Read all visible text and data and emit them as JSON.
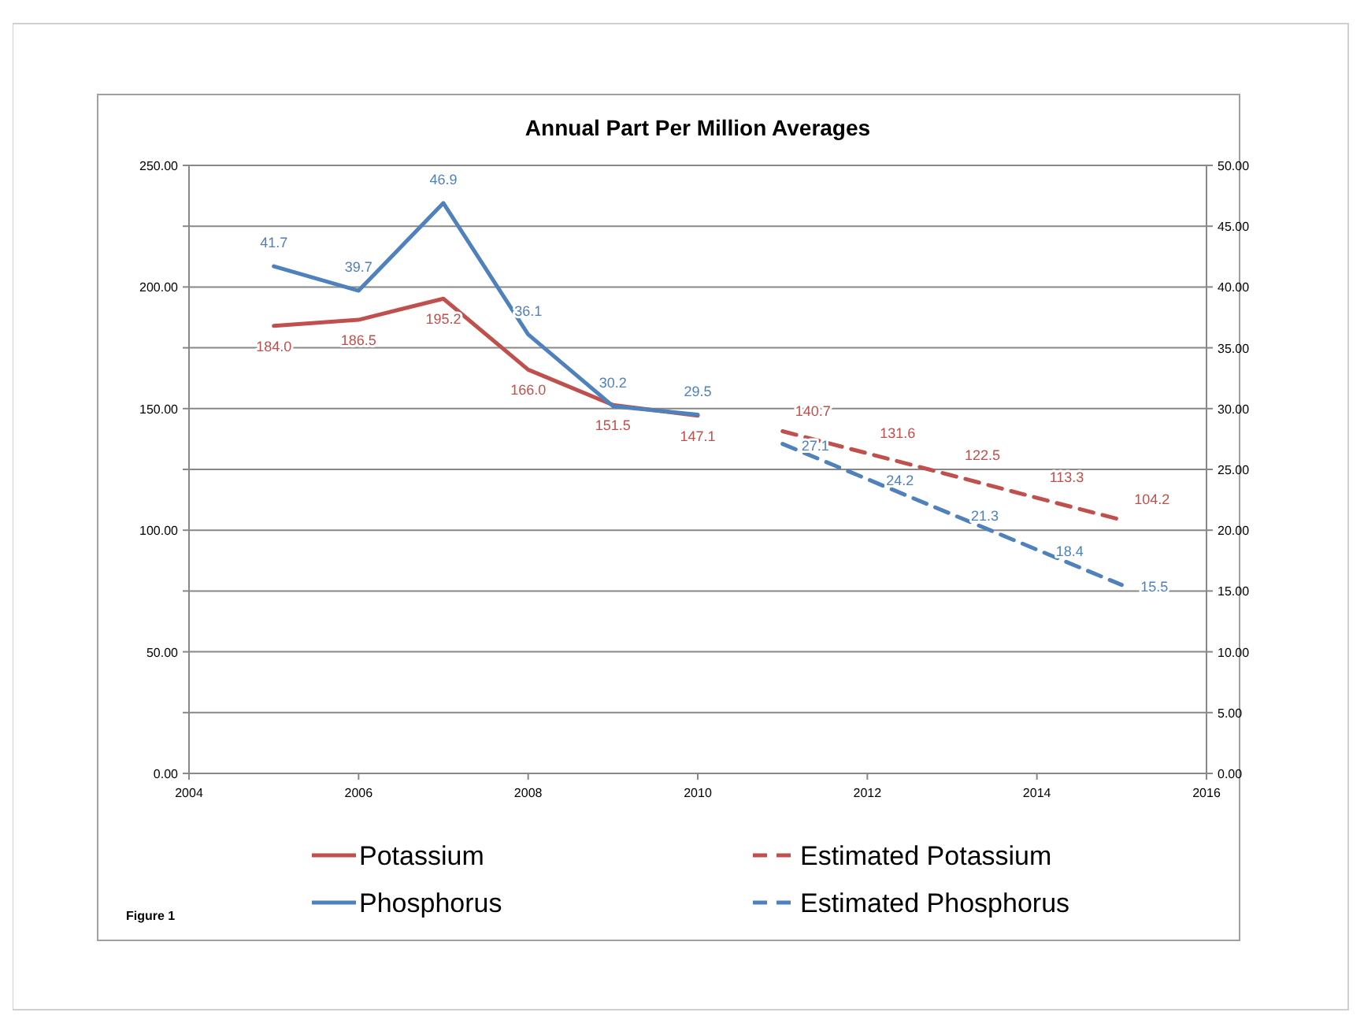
{
  "chart_data": {
    "type": "line",
    "title": "Annual Part Per Million Averages",
    "xlim": [
      2004,
      2016
    ],
    "xticks": [
      2004,
      2006,
      2008,
      2010,
      2012,
      2014,
      2016
    ],
    "ylim": [
      0,
      250
    ],
    "yticks": [
      {
        "value": 0,
        "label": "0.00"
      },
      {
        "value": 25,
        "label": null
      },
      {
        "value": 50,
        "label": "50.00"
      },
      {
        "value": 75,
        "label": null
      },
      {
        "value": 100,
        "label": "100.00"
      },
      {
        "value": 125,
        "label": null
      },
      {
        "value": 150,
        "label": "150.00"
      },
      {
        "value": 175,
        "label": null
      },
      {
        "value": 200,
        "label": "200.00"
      },
      {
        "value": 225,
        "label": null
      },
      {
        "value": 250,
        "label": "250.00"
      }
    ],
    "y2lim": [
      0,
      50
    ],
    "y2ticks": [
      {
        "value": 0,
        "label": "0.00"
      },
      {
        "value": 5,
        "label": "5.00"
      },
      {
        "value": 10,
        "label": "10.00"
      },
      {
        "value": 15,
        "label": "15.00"
      },
      {
        "value": 20,
        "label": "20.00"
      },
      {
        "value": 25,
        "label": "25.00"
      },
      {
        "value": 30,
        "label": "30.00"
      },
      {
        "value": 35,
        "label": "35.00"
      },
      {
        "value": 40,
        "label": "40.00"
      },
      {
        "value": 45,
        "label": "45.00"
      },
      {
        "value": 50,
        "label": "50.00"
      }
    ],
    "grid": "y",
    "legend": "bottom",
    "marker": "none",
    "annotations": [
      "Figure 1"
    ],
    "series": [
      {
        "name": "Potassium",
        "color": "#c0504d",
        "line_style": "solid",
        "x": [
          2005,
          2006,
          2007,
          2008,
          2009,
          2010
        ],
        "values": [
          184.0,
          186.5,
          195.2,
          166.0,
          151.5,
          147.1
        ],
        "value_labels": [
          "184.0",
          "186.5",
          "195.2",
          "166.0",
          "151.5",
          "147.1"
        ]
      },
      {
        "name": "Phosphorus",
        "color": "#4f81bd",
        "line_style": "solid",
        "axis": "y2",
        "x": [
          2005,
          2006,
          2007,
          2008,
          2009,
          2010
        ],
        "values": [
          41.7,
          39.7,
          46.9,
          36.1,
          30.2,
          29.5
        ],
        "value_labels": [
          "41.7",
          "39.7",
          "46.9",
          "36.1",
          "30.2",
          "29.5"
        ]
      },
      {
        "name": "Estimated Potassium",
        "color": "#c0504d",
        "line_style": "dashed",
        "x": [
          2011,
          2012,
          2013,
          2014,
          2015
        ],
        "values": [
          140.7,
          131.6,
          122.5,
          113.3,
          104.2
        ],
        "value_labels": [
          "140.7",
          "131.6",
          "122.5",
          "113.3",
          "104.2"
        ]
      },
      {
        "name": "Estimated Phosphorus",
        "color": "#4f81bd",
        "line_style": "dashed",
        "axis": "y2",
        "x": [
          2011,
          2012,
          2013,
          2014,
          2015
        ],
        "values": [
          27.1,
          24.2,
          21.3,
          18.4,
          15.5
        ],
        "value_labels": [
          "27.1",
          "24.2",
          "21.3",
          "18.4",
          "15.5"
        ]
      }
    ]
  }
}
